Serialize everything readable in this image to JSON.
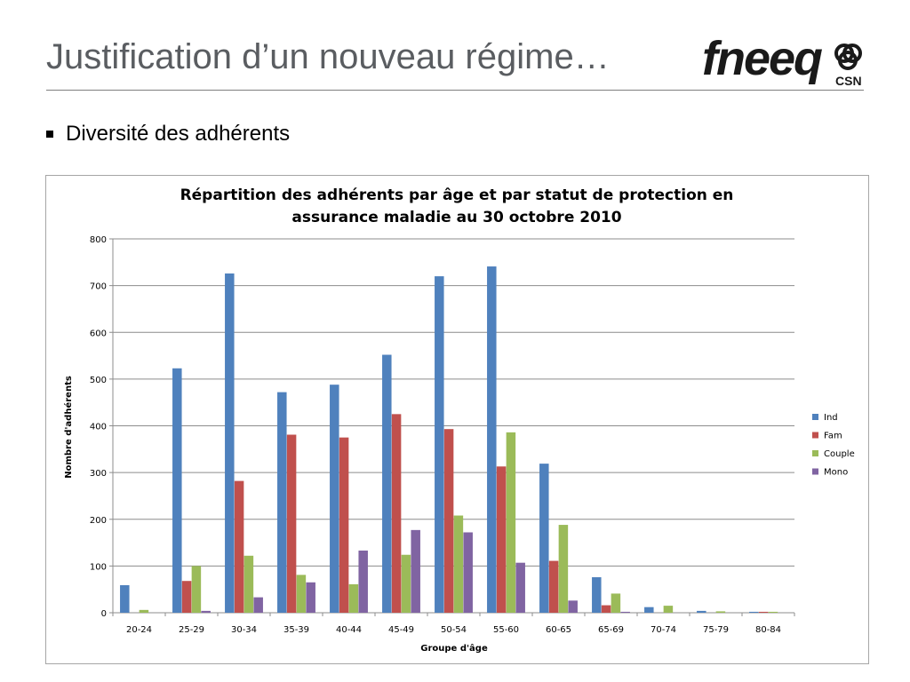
{
  "slide": {
    "title": "Justification d’un nouveau régime…",
    "bullet": "Diversité des adhérents",
    "logo": {
      "wordmark": "fneeq",
      "subtext": "CSN"
    }
  },
  "colors": {
    "title": "#5a5d61",
    "grid": "#8c8c8c",
    "frame": "#a6a6a6"
  },
  "chart_data": {
    "type": "bar",
    "title_lines": [
      "Répartition des adhérents par âge et par statut de protection en",
      "assurance maladie au 30 octobre 2010"
    ],
    "xlabel": "Groupe d'âge",
    "ylabel": "Nombre d'adhérents",
    "ylim": [
      0,
      800
    ],
    "yticks": [
      0,
      100,
      200,
      300,
      400,
      500,
      600,
      700,
      800
    ],
    "grid": true,
    "legend_position": "right",
    "categories": [
      "20-24",
      "25-29",
      "30-34",
      "35-39",
      "40-44",
      "45-49",
      "50-54",
      "55-60",
      "60-65",
      "65-69",
      "70-74",
      "75-79",
      "80-84"
    ],
    "series": [
      {
        "name": "Ind",
        "color": "#4f81bd",
        "values": [
          59,
          523,
          726,
          472,
          488,
          552,
          720,
          741,
          319,
          76,
          12,
          4,
          2
        ]
      },
      {
        "name": "Fam",
        "color": "#c0504d",
        "values": [
          0,
          68,
          282,
          381,
          375,
          425,
          393,
          313,
          111,
          16,
          0,
          0,
          2
        ]
      },
      {
        "name": "Couple",
        "color": "#9bbb59",
        "values": [
          6,
          100,
          122,
          81,
          61,
          124,
          208,
          386,
          188,
          41,
          15,
          3,
          2
        ]
      },
      {
        "name": "Mono",
        "color": "#8064a2",
        "values": [
          0,
          4,
          33,
          65,
          133,
          177,
          172,
          107,
          26,
          2,
          0,
          0,
          0
        ]
      }
    ]
  }
}
